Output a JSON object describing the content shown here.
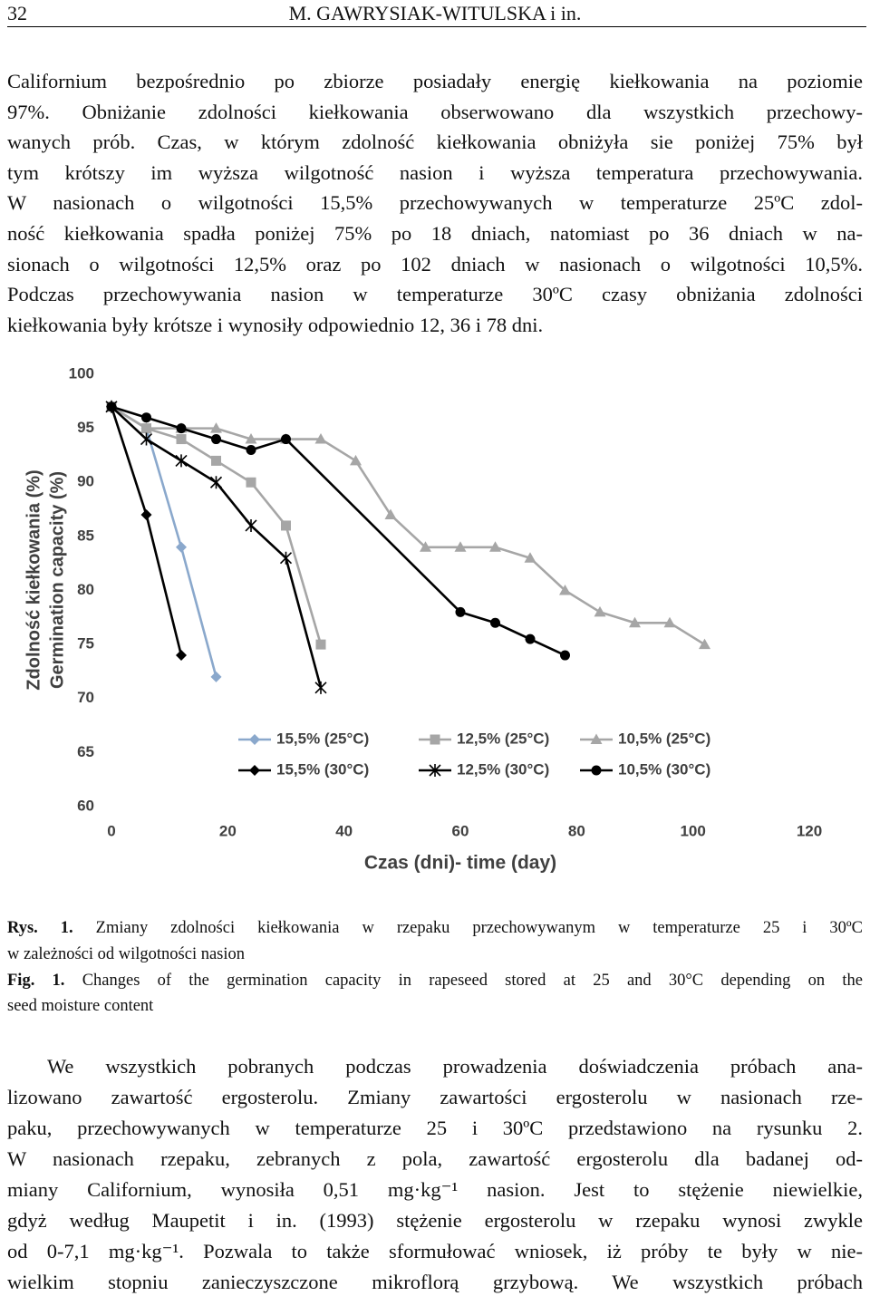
{
  "header": {
    "page": "32",
    "running_title": "M. GAWRYSIAK-WITULSKA i in."
  },
  "paragraph_1": [
    "Californium  bezpośrednio po zbiorze posiadały energię kiełkowania na poziomie",
    "97%. Obniżanie zdolności kiełkowania obserwowano dla wszystkich przechowy-",
    "wanych prób. Czas, w którym zdolność kiełkowania obniżyła sie poniżej 75% był",
    "tym krótszy im wyższa wilgotność nasion i wyższa temperatura przechowywania.",
    "W nasionach o wilgotności 15,5% przechowywanych w temperaturze 25ºC zdol-",
    "ność kiełkowania spadła poniżej 75% po 18 dniach, natomiast po 36 dniach w na-",
    "sionach o wilgotności 12,5% oraz po 102 dniach w nasionach o wilgotności 10,5%.",
    "Podczas przechowywania nasion w temperaturze 30ºC czasy obniżania zdolności",
    "kiełkowania były krótsze i wynosiły odpowiednio 12, 36 i 78 dni."
  ],
  "chart_data": {
    "type": "line",
    "y_label": "Zdolność kiełkowania (%)",
    "y_label_2": "Germination capacity (%)",
    "x_label": "Czas (dni)- time (day)",
    "xlim": [
      0,
      120
    ],
    "xticks": [
      0,
      20,
      40,
      60,
      80,
      100,
      120
    ],
    "ylim": [
      60,
      100
    ],
    "yticks": [
      60,
      65,
      70,
      75,
      80,
      85,
      90,
      95,
      100
    ],
    "grid": false,
    "legend": "bottom",
    "series": [
      {
        "name": "15,5% (25°C)",
        "color": "#8aa8cc",
        "marker": "diamond",
        "x": [
          0,
          6,
          12,
          18
        ],
        "values": [
          97,
          95,
          84,
          72
        ]
      },
      {
        "name": "12,5% (25°C)",
        "color": "#a6a6a6",
        "marker": "square",
        "x": [
          0,
          6,
          12,
          18,
          24,
          30,
          36
        ],
        "values": [
          97,
          95,
          94,
          92,
          90,
          86,
          75
        ]
      },
      {
        "name": "10,5% (25°C)",
        "color": "#a6a6a6",
        "marker": "triangle",
        "x": [
          0,
          6,
          12,
          18,
          24,
          30,
          36,
          42,
          48,
          54,
          60,
          66,
          72,
          78,
          84,
          90,
          96,
          102
        ],
        "values": [
          97,
          95,
          95,
          95,
          94,
          94,
          94,
          92,
          87,
          84,
          84,
          84,
          83,
          80,
          78,
          77,
          77,
          75
        ]
      },
      {
        "name": "15,5% (30°C)",
        "color": "#000000",
        "marker": "diamond",
        "x": [
          0,
          6,
          12
        ],
        "values": [
          97,
          87,
          74
        ]
      },
      {
        "name": "12,5% (30°C)",
        "color": "#000000",
        "marker": "star",
        "x": [
          0,
          6,
          12,
          18,
          24,
          30,
          36
        ],
        "values": [
          97,
          94,
          92,
          90,
          86,
          83,
          71
        ]
      },
      {
        "name": "10,5% (30°C)",
        "color": "#000000",
        "marker": "circle",
        "x": [
          0,
          6,
          12,
          18,
          24,
          30,
          60,
          66,
          72,
          78
        ],
        "values": [
          97,
          96,
          95,
          94,
          93,
          94,
          78,
          77,
          75.5,
          74
        ]
      }
    ]
  },
  "caption": {
    "pl_label": "Rys. 1.",
    "pl_text": "Zmiany zdolności kiełkowania w rzepaku przechowywanym w temperaturze 25 i 30ºC",
    "pl_text_2": "w zależności od wilgotności nasion",
    "en_label": "Fig. 1.",
    "en_text": "Changes of the germination capacity in rapeseed stored at 25 and 30°C depending on the",
    "en_text_2": "seed moisture content"
  },
  "paragraph_2": [
    "We wszystkich pobranych podczas prowadzenia doświadczenia próbach ana-",
    "lizowano zawartość ergosterolu. Zmiany zawartości ergosterolu w nasionach rze-",
    "paku, przechowywanych w temperaturze 25 i 30ºC przedstawiono na rysunku 2.",
    "W nasionach rzepaku, zebranych z pola, zawartość ergosterolu dla badanej od-",
    "miany Californium, wynosiła 0,51 mg·kg⁻¹ nasion. Jest to stężenie niewielkie,",
    "gdyż według Maupetit i in. (1993) stężenie ergosterolu w rzepaku wynosi zwykle",
    "od 0-7,1 mg·kg⁻¹. Pozwala to także sformułować wniosek, iż próby te były w nie-",
    "wielkim stopniu zanieczyszczone mikroflorą grzybową. We wszystkich próbach"
  ]
}
